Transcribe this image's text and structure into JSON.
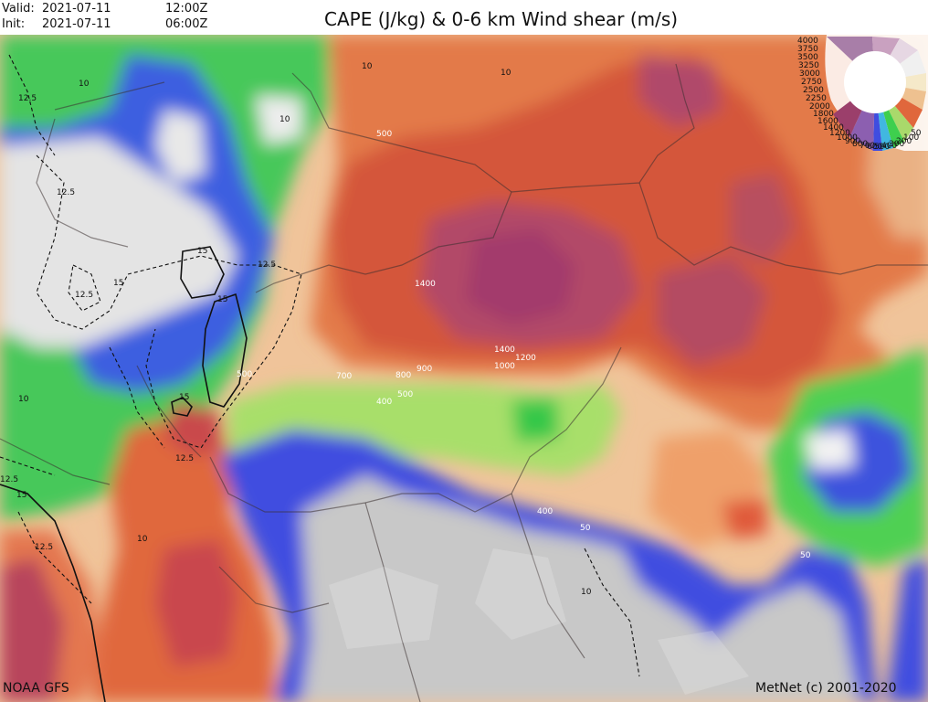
{
  "header": {
    "valid_label": "Valid:",
    "valid_date": "2021-07-11",
    "valid_time": "12:00Z",
    "init_label": "Init:",
    "init_date": "2021-07-11",
    "init_time": "06:00Z",
    "title": "CAPE (J/kg) & 0-6 km Wind shear (m/s)"
  },
  "footer": {
    "model": "NOAA GFS",
    "copyright": "MetNet (c) 2001-2020"
  },
  "cape_labels": [
    "500",
    "1400",
    "1400",
    "1200",
    "1000",
    "700",
    "800",
    "900",
    "400",
    "500",
    "500",
    "400",
    "50",
    "50"
  ],
  "shear_labels": [
    "10",
    "10",
    "10",
    "10",
    "12.5",
    "12.5",
    "12.5",
    "12.5",
    "15",
    "15",
    "15",
    "15",
    "12.5",
    "10",
    "10",
    "10",
    "15",
    "12.5",
    "12.5"
  ],
  "legend": {
    "values": [
      "4000",
      "3750",
      "3500",
      "3250",
      "3000",
      "2750",
      "2500",
      "2250",
      "2000",
      "1800",
      "1600",
      "1400",
      "1200",
      "1000",
      "900",
      "800",
      "700",
      "600",
      "500",
      "400",
      "300",
      "200",
      "100",
      "50"
    ]
  },
  "colors": {
    "high_cape": "#a93b6b",
    "medium_cape": "#e0673c",
    "low_cape": "#eeb27c",
    "green_band": "#58d24a",
    "blue_band": "#3f4de0",
    "terrain_grey": "#c8c8c8"
  }
}
